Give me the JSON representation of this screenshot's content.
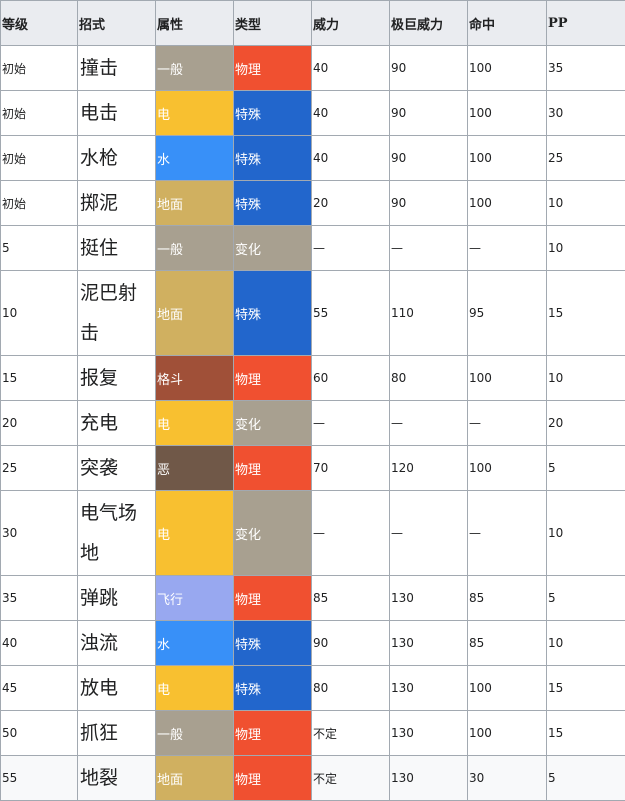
{
  "headers": [
    "等级",
    "招式",
    "属性",
    "类型",
    "威力",
    "极巨威力",
    "命中",
    "PP"
  ],
  "colors": {
    "一般": "#a8a090",
    "电": "#f8c030",
    "水": "#3890f8",
    "地面": "#d0b060",
    "格斗": "#a05038",
    "恶": "#705848",
    "飞行": "#98a8f0",
    "物理": "#f05030",
    "特殊": "#2266cc",
    "变化": "#a8a090"
  },
  "rows": [
    {
      "level": "初始",
      "move": "撞击",
      "type": "一般",
      "category": "物理",
      "power": "40",
      "max_power": "90",
      "accuracy": "100",
      "pp": "35"
    },
    {
      "level": "初始",
      "move": "电击",
      "type": "电",
      "category": "特殊",
      "power": "40",
      "max_power": "90",
      "accuracy": "100",
      "pp": "30"
    },
    {
      "level": "初始",
      "move": "水枪",
      "type": "水",
      "category": "特殊",
      "power": "40",
      "max_power": "90",
      "accuracy": "100",
      "pp": "25"
    },
    {
      "level": "初始",
      "move": "掷泥",
      "type": "地面",
      "category": "特殊",
      "power": "20",
      "max_power": "90",
      "accuracy": "100",
      "pp": "10"
    },
    {
      "level": "5",
      "move": "挺住",
      "type": "一般",
      "category": "变化",
      "power": "—",
      "max_power": "—",
      "accuracy": "—",
      "pp": "10"
    },
    {
      "level": "10",
      "move": "泥巴射击",
      "type": "地面",
      "category": "特殊",
      "power": "55",
      "max_power": "110",
      "accuracy": "95",
      "pp": "15"
    },
    {
      "level": "15",
      "move": "报复",
      "type": "格斗",
      "category": "物理",
      "power": "60",
      "max_power": "80",
      "accuracy": "100",
      "pp": "10"
    },
    {
      "level": "20",
      "move": "充电",
      "type": "电",
      "category": "变化",
      "power": "—",
      "max_power": "—",
      "accuracy": "—",
      "pp": "20"
    },
    {
      "level": "25",
      "move": "突袭",
      "type": "恶",
      "category": "物理",
      "power": "70",
      "max_power": "120",
      "accuracy": "100",
      "pp": "5"
    },
    {
      "level": "30",
      "move": "电气场地",
      "type": "电",
      "category": "变化",
      "power": "—",
      "max_power": "—",
      "accuracy": "—",
      "pp": "10"
    },
    {
      "level": "35",
      "move": "弹跳",
      "type": "飞行",
      "category": "物理",
      "power": "85",
      "max_power": "130",
      "accuracy": "85",
      "pp": "5"
    },
    {
      "level": "40",
      "move": "浊流",
      "type": "水",
      "category": "特殊",
      "power": "90",
      "max_power": "130",
      "accuracy": "85",
      "pp": "10"
    },
    {
      "level": "45",
      "move": "放电",
      "type": "电",
      "category": "特殊",
      "power": "80",
      "max_power": "130",
      "accuracy": "100",
      "pp": "15"
    },
    {
      "level": "50",
      "move": "抓狂",
      "type": "一般",
      "category": "物理",
      "power": "不定",
      "max_power": "130",
      "accuracy": "100",
      "pp": "15"
    },
    {
      "level": "55",
      "move": "地裂",
      "type": "地面",
      "category": "物理",
      "power": "不定",
      "max_power": "130",
      "accuracy": "30",
      "pp": "5"
    }
  ]
}
